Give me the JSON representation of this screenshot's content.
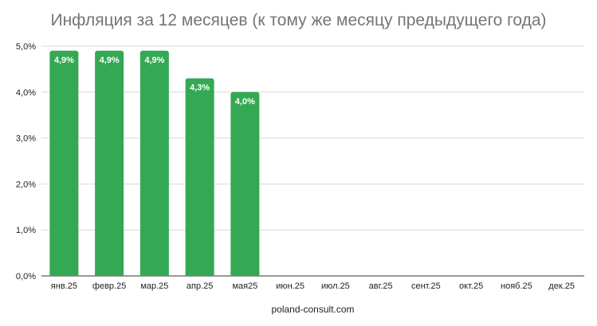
{
  "chart_data": {
    "type": "bar",
    "title": "Инфляция за 12 месяцев (к тому же месяцу предыдущего года)",
    "categories": [
      "янв.25",
      "февр.25",
      "мар.25",
      "апр.25",
      "мая25",
      "июн.25",
      "июл.25",
      "авг.25",
      "сент.25",
      "окт.25",
      "нояб.25",
      "дек.25"
    ],
    "values": [
      4.9,
      4.9,
      4.9,
      4.3,
      4.0,
      null,
      null,
      null,
      null,
      null,
      null,
      null
    ],
    "data_labels": [
      "4,9%",
      "4,9%",
      "4,9%",
      "4,3%",
      "4,0%",
      "",
      "",
      "",
      "",
      "",
      "",
      ""
    ],
    "y_ticks": [
      0,
      1,
      2,
      3,
      4,
      5
    ],
    "y_tick_labels": [
      "0,0%",
      "1,0%",
      "2,0%",
      "3,0%",
      "4,0%",
      "5,0%"
    ],
    "ylim": [
      0,
      5
    ],
    "xlabel": "poland-consult.com",
    "ylabel": "",
    "grid": true,
    "legend": "none",
    "bar_color": "#34a853",
    "grid_color": "#d9d9d9"
  }
}
